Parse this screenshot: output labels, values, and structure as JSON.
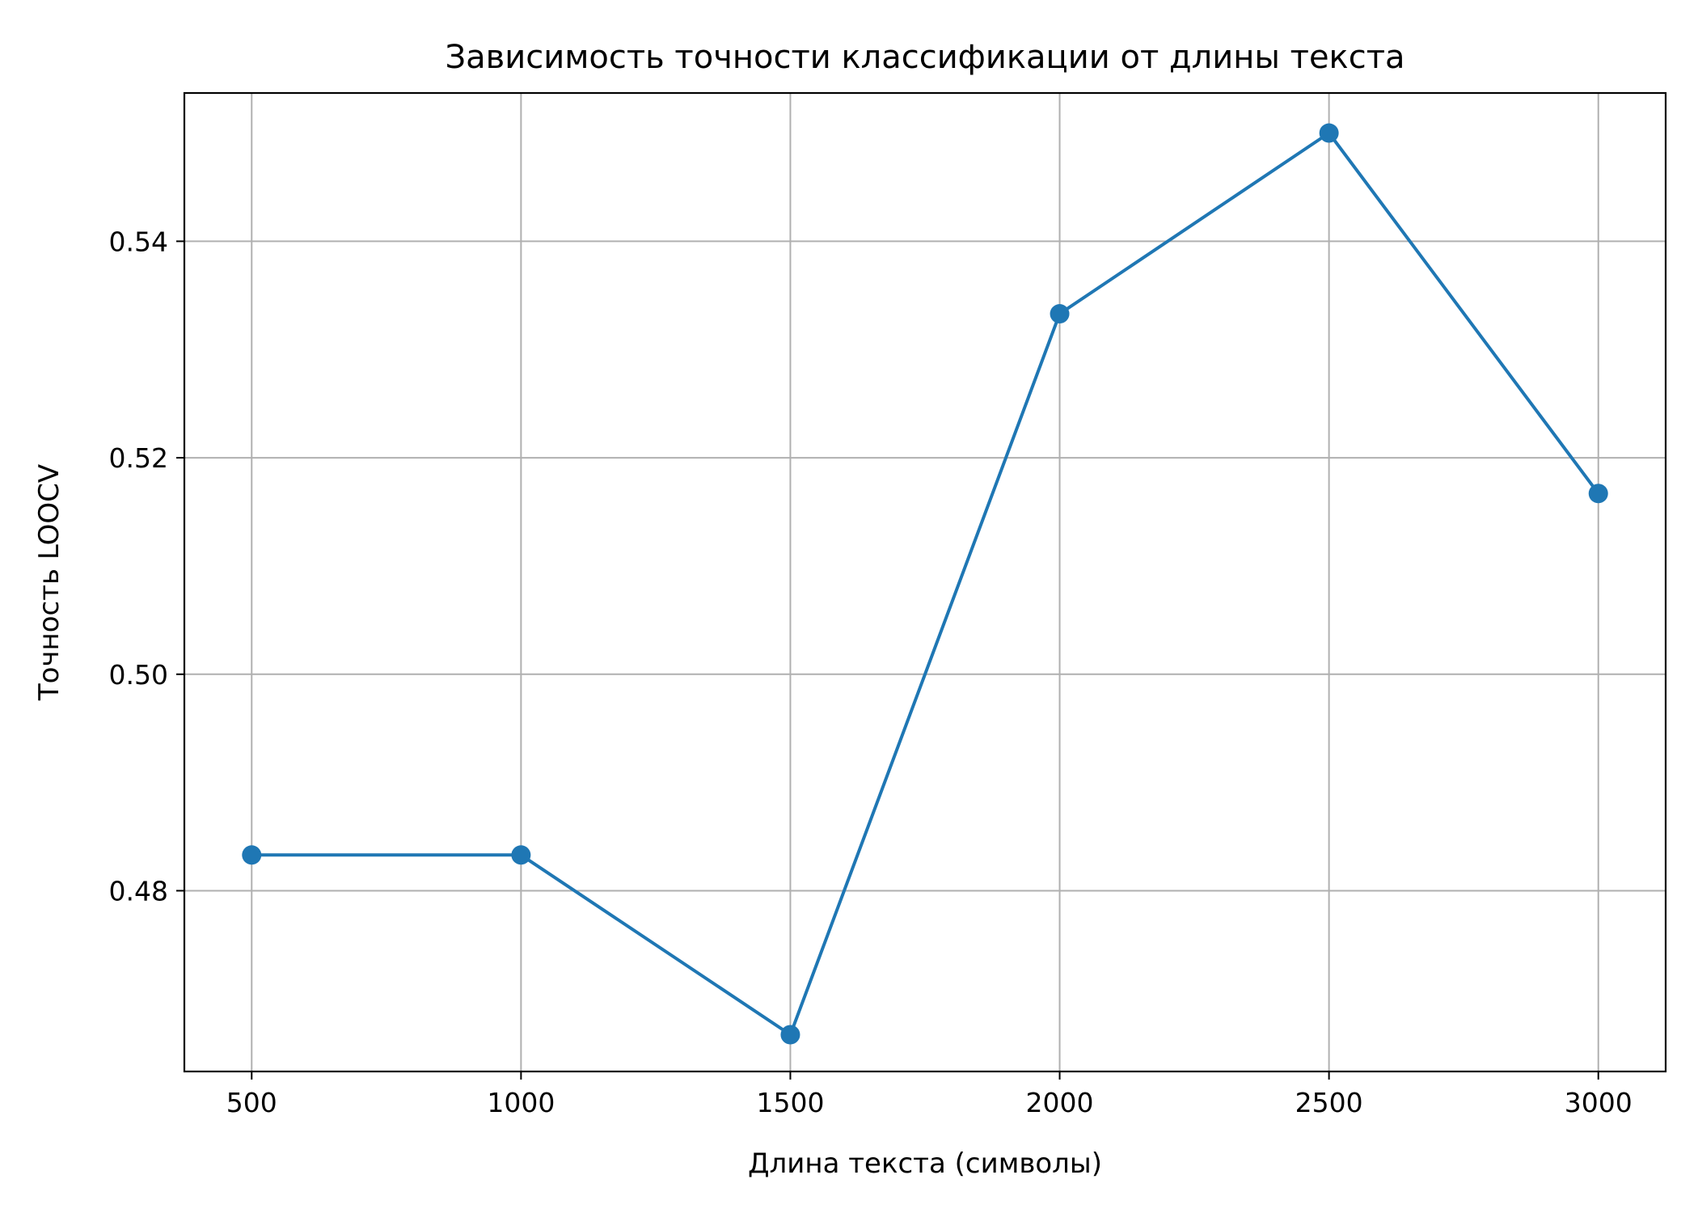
{
  "chart_data": {
    "type": "line",
    "title": "Зависимость точности классификации от длины текста",
    "xlabel": "Длина текста (символы)",
    "ylabel": "Точность LOOCV",
    "x": [
      500,
      1000,
      1500,
      2000,
      2500,
      3000
    ],
    "series": [
      {
        "values": [
          0.4833,
          0.4833,
          0.4667,
          0.5333,
          0.55,
          0.5167
        ],
        "color": "#1f77b4",
        "marker": "circle"
      }
    ],
    "xlim": [
      375,
      3125
    ],
    "ylim": [
      0.4633,
      0.5537
    ],
    "xticks": [
      500,
      1000,
      1500,
      2000,
      2500,
      3000
    ],
    "xtick_labels": [
      "500",
      "1000",
      "1500",
      "2000",
      "2500",
      "3000"
    ],
    "yticks": [
      0.48,
      0.5,
      0.52,
      0.54
    ],
    "ytick_labels": [
      "0.48",
      "0.50",
      "0.52",
      "0.54"
    ],
    "grid": true,
    "legend": false
  }
}
